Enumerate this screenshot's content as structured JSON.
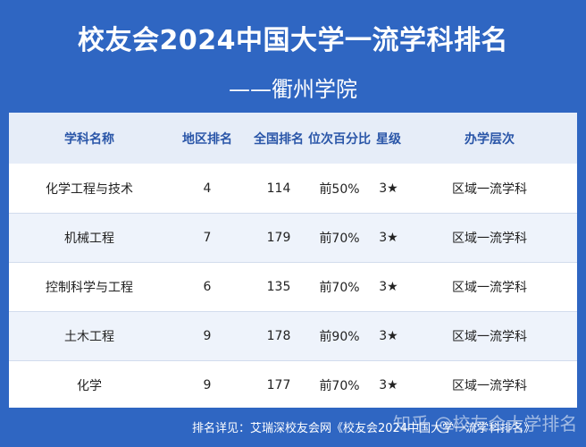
{
  "header": {
    "title": "校友会2024中国大学一流学科排名",
    "subtitle": "——衢州学院"
  },
  "table": {
    "columns": [
      "学科名称",
      "地区排名",
      "全国排名",
      "位次百分比",
      "星级",
      "办学层次"
    ],
    "rows": [
      [
        "化学工程与技术",
        "4",
        "114",
        "前50%",
        "3★",
        "区域一流学科"
      ],
      [
        "机械工程",
        "7",
        "179",
        "前70%",
        "3★",
        "区域一流学科"
      ],
      [
        "控制科学与工程",
        "6",
        "135",
        "前70%",
        "3★",
        "区域一流学科"
      ],
      [
        "土木工程",
        "9",
        "178",
        "前90%",
        "3★",
        "区域一流学科"
      ],
      [
        "化学",
        "9",
        "177",
        "前70%",
        "3★",
        "区域一流学科"
      ]
    ]
  },
  "footer": {
    "source_text": "排名详见：艾瑞深校友会网《校友会2024中国大学一流学科排名》",
    "watermark": "知乎 @校友会大学排名"
  },
  "colors": {
    "background": "#2f66c2",
    "header_row": "#e6edf8",
    "alt_row": "#eef3fb",
    "header_text": "#2a56a8"
  }
}
